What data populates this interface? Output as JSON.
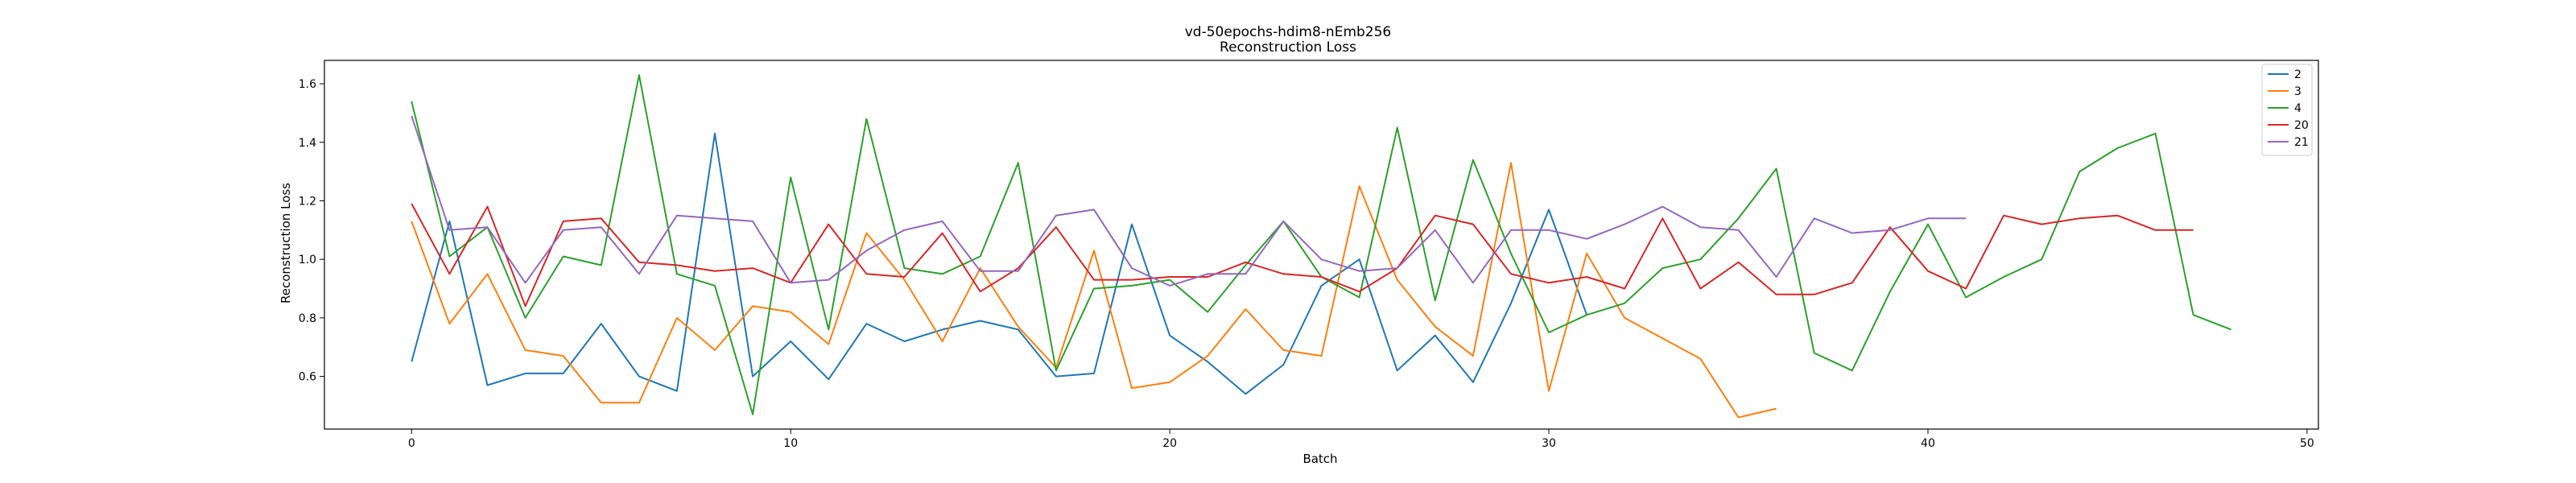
{
  "chart_data": {
    "type": "line",
    "title": "vd-50epochs-hdim8-nEmb256",
    "subtitle": "Reconstruction Loss",
    "xlabel": "Batch",
    "ylabel": "Reconstruction Loss",
    "xlim": [
      -2.3,
      50.3
    ],
    "ylim": [
      0.42,
      1.68
    ],
    "xticks": [
      0,
      10,
      20,
      30,
      40,
      50
    ],
    "yticks": [
      0.6,
      0.8,
      1.0,
      1.2,
      1.4,
      1.6
    ],
    "ytick_labels": [
      "0.6",
      "0.8",
      "1.0",
      "1.2",
      "1.4",
      "1.6"
    ],
    "grid": false,
    "legend_position": "top-right",
    "series": [
      {
        "name": "2",
        "color": "#1f77b4",
        "values": [
          0.65,
          1.13,
          0.57,
          0.61,
          0.61,
          0.78,
          0.6,
          0.55,
          1.43,
          0.6,
          0.72,
          0.59,
          0.78,
          0.72,
          0.76,
          0.79,
          0.76,
          0.6,
          0.61,
          1.12,
          0.74,
          0.65,
          0.54,
          0.64,
          0.91,
          1.0,
          0.62,
          0.74,
          0.58,
          0.85,
          1.17,
          0.81
        ]
      },
      {
        "name": "3",
        "color": "#ff7f0e",
        "values": [
          1.13,
          0.78,
          0.95,
          0.69,
          0.67,
          0.51,
          0.51,
          0.8,
          0.69,
          0.84,
          0.82,
          0.71,
          1.09,
          0.93,
          0.72,
          0.97,
          0.77,
          0.63,
          1.03,
          0.56,
          0.58,
          0.67,
          0.83,
          0.69,
          0.67,
          1.25,
          0.93,
          0.77,
          0.67,
          1.33,
          0.55,
          1.02,
          0.8,
          0.73,
          0.66,
          0.46,
          0.49
        ]
      },
      {
        "name": "4",
        "color": "#2ca02c",
        "values": [
          1.54,
          1.01,
          1.11,
          0.8,
          1.01,
          0.98,
          1.63,
          0.95,
          0.91,
          0.47,
          1.28,
          0.76,
          1.48,
          0.97,
          0.95,
          1.01,
          1.33,
          0.62,
          0.9,
          0.91,
          0.93,
          0.82,
          0.98,
          1.13,
          0.94,
          0.87,
          1.45,
          0.86,
          1.34,
          1.02,
          0.75,
          0.81,
          0.85,
          0.97,
          1.0,
          1.14,
          1.31,
          0.68,
          0.62,
          0.89,
          1.12,
          0.87,
          0.94,
          1.0,
          1.3,
          1.38,
          1.43,
          0.81,
          0.76
        ]
      },
      {
        "name": "20",
        "color": "#d62728",
        "values": [
          1.19,
          0.95,
          1.18,
          0.84,
          1.13,
          1.14,
          0.99,
          0.98,
          0.96,
          0.97,
          0.92,
          1.12,
          0.95,
          0.94,
          1.09,
          0.89,
          0.97,
          1.11,
          0.93,
          0.93,
          0.94,
          0.94,
          0.99,
          0.95,
          0.94,
          0.89,
          0.97,
          1.15,
          1.12,
          0.95,
          0.92,
          0.94,
          0.9,
          1.14,
          0.9,
          0.99,
          0.88,
          0.88,
          0.92,
          1.11,
          0.96,
          0.9,
          1.15,
          1.12,
          1.14,
          1.15,
          1.1,
          1.1
        ]
      },
      {
        "name": "21",
        "color": "#9467bd",
        "values": [
          1.49,
          1.1,
          1.11,
          0.92,
          1.1,
          1.11,
          0.95,
          1.15,
          1.14,
          1.13,
          0.92,
          0.93,
          1.03,
          1.1,
          1.13,
          0.96,
          0.96,
          1.15,
          1.17,
          0.97,
          0.91,
          0.95,
          0.95,
          1.13,
          1.0,
          0.96,
          0.97,
          1.1,
          0.92,
          1.1,
          1.1,
          1.07,
          1.12,
          1.18,
          1.11,
          1.1,
          0.94,
          1.14,
          1.09,
          1.1,
          1.14,
          1.14
        ]
      }
    ]
  }
}
